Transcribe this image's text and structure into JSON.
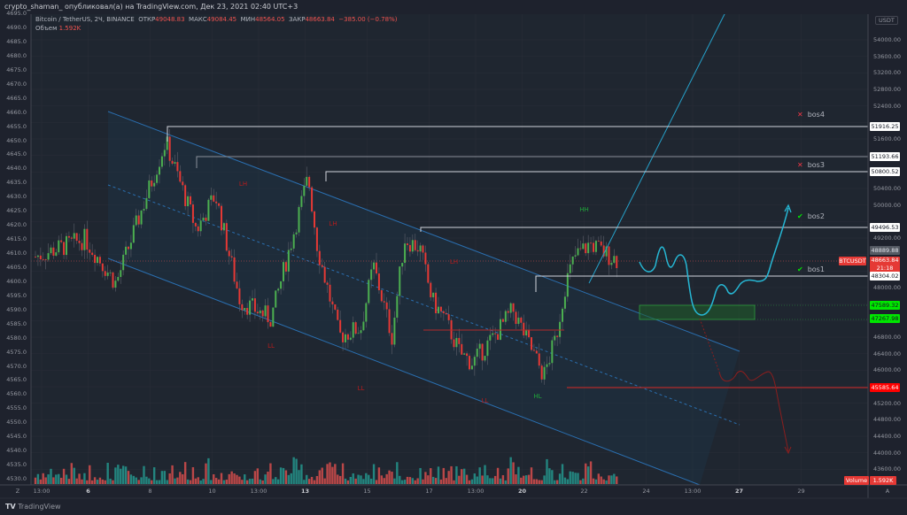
{
  "header": {
    "title": "crypto_shaman_ опубликовал(а) на TradingView.com, Дек 23, 2021 02:40 UTC+3"
  },
  "legend": {
    "symbol": "Bitcoin / TetherUS, 2Ч, BINANCE",
    "open_label": "ОТКР",
    "open": "49048.83",
    "high_label": "МАКС",
    "high": "49084.45",
    "low_label": "МИН",
    "low": "48564.05",
    "close_label": "ЗАКР",
    "close": "48663.84",
    "change": "−385.00 (−0.78%)",
    "volume_label": "Объем",
    "volume": "1.592K"
  },
  "colors": {
    "bg": "#1e222d",
    "up": "#26a69a",
    "down": "#ef5350",
    "candle_up": "#4caf50",
    "candle_down": "#e53935",
    "channel": "#2962ff",
    "cyan": "#26c6da",
    "level": "#d1d4dc",
    "green_zone": "#00e600",
    "red_level": "#f23645"
  },
  "chart_data": {
    "type": "candlestick",
    "currency": "USDT",
    "left_axis_ticks": [
      "4695.0",
      "4690.0",
      "4685.0",
      "4680.0",
      "4675.0",
      "4670.0",
      "4665.0",
      "4660.0",
      "4655.0",
      "4650.0",
      "4645.0",
      "4640.0",
      "4635.0",
      "4630.0",
      "4625.0",
      "4620.0",
      "4615.0",
      "4610.0",
      "4605.0",
      "4600.0",
      "4595.0",
      "4590.0",
      "4585.0",
      "4580.0",
      "4575.0",
      "4570.0",
      "4565.0",
      "4560.0",
      "4555.0",
      "4550.0",
      "4545.0",
      "4540.0",
      "4535.0",
      "4530.0"
    ],
    "right_axis_ticks": [
      "54000.00",
      "53600.00",
      "53200.00",
      "52800.00",
      "52400.00",
      "51600.00",
      "50400.00",
      "50000.00",
      "49200.00",
      "48000.00",
      "46800.00",
      "46400.00",
      "46000.00",
      "45200.00",
      "44800.00",
      "44400.00",
      "44000.00",
      "43600.00"
    ],
    "right_axis_range": [
      43600,
      54000
    ],
    "time_ticks": [
      {
        "t": "13:00",
        "d": 0.2
      },
      {
        "t": "6",
        "d": 1.7,
        "b": true
      },
      {
        "t": "8",
        "d": 3.7
      },
      {
        "t": "10",
        "d": 5.7
      },
      {
        "t": "13:00",
        "d": 7.2
      },
      {
        "t": "13",
        "d": 8.7,
        "b": true
      },
      {
        "t": "15",
        "d": 10.7
      },
      {
        "t": "17",
        "d": 12.7
      },
      {
        "t": "13:00",
        "d": 14.2
      },
      {
        "t": "20",
        "d": 15.7,
        "b": true
      },
      {
        "t": "22",
        "d": 17.7
      },
      {
        "t": "24",
        "d": 19.7
      },
      {
        "t": "13:00",
        "d": 21.2
      },
      {
        "t": "27",
        "d": 22.7,
        "b": true
      },
      {
        "t": "29",
        "d": 24.7
      }
    ],
    "price_path": [
      [
        0,
        48750
      ],
      [
        1.6,
        49180
      ],
      [
        2.6,
        48100
      ],
      [
        3.5,
        50040
      ],
      [
        4.2,
        51540
      ],
      [
        4.6,
        50680
      ],
      [
        5.2,
        49390
      ],
      [
        5.8,
        50250
      ],
      [
        6.6,
        47680
      ],
      [
        7.6,
        47250
      ],
      [
        8.8,
        50680
      ],
      [
        9.1,
        48960
      ],
      [
        9.8,
        46820
      ],
      [
        10.5,
        47040
      ],
      [
        10.9,
        48540
      ],
      [
        11.5,
        46820
      ],
      [
        11.9,
        49180
      ],
      [
        12.4,
        48960
      ],
      [
        12.8,
        47680
      ],
      [
        13.2,
        47250
      ],
      [
        13.7,
        46400
      ],
      [
        14.1,
        46180
      ],
      [
        14.8,
        46820
      ],
      [
        15.4,
        47460
      ],
      [
        15.8,
        46820
      ],
      [
        16.4,
        45860
      ],
      [
        16.8,
        46820
      ],
      [
        17.1,
        48100
      ],
      [
        17.4,
        48750
      ],
      [
        17.9,
        49070
      ],
      [
        18.3,
        48860
      ],
      [
        18.8,
        48660
      ]
    ],
    "levels": [
      {
        "name": "bos4",
        "price": "51916.25",
        "status": "failed"
      },
      {
        "name": "",
        "price": "51193.66",
        "status": ""
      },
      {
        "name": "bos3",
        "price": "50800.52",
        "status": "failed"
      },
      {
        "name": "bos2",
        "price": "49496.53",
        "status": "ok"
      },
      {
        "name": "bos1",
        "price": "48304.02",
        "status": "ok"
      }
    ],
    "price_tags": {
      "high_tag": "48889.88",
      "last": "48663.84",
      "countdown": "21:18",
      "symbol": "BTCUSDT",
      "zone_top": "47589.32",
      "zone_bottom": "47267.98",
      "support": "45585.64",
      "volume_label": "Volume",
      "volume": "1.592K"
    },
    "structure_labels": [
      {
        "t": "LH",
        "c": "down",
        "d": 6.7,
        "p": 50500
      },
      {
        "t": "LH",
        "c": "down",
        "d": 9.6,
        "p": 49550
      },
      {
        "t": "LH",
        "c": "down",
        "d": 13.5,
        "p": 48620
      },
      {
        "t": "LL",
        "c": "down",
        "d": 7.6,
        "p": 46590
      },
      {
        "t": "LL",
        "c": "down",
        "d": 10.5,
        "p": 45550
      },
      {
        "t": "LL",
        "c": "down",
        "d": 14.5,
        "p": 45250
      },
      {
        "t": "HH",
        "c": "up",
        "d": 17.7,
        "p": 49880
      },
      {
        "t": "HL",
        "c": "up",
        "d": 16.2,
        "p": 45360
      }
    ]
  },
  "axis": {
    "left_corner": "Z",
    "right_corner": "A"
  },
  "footer": {
    "brand": "TradingView"
  }
}
